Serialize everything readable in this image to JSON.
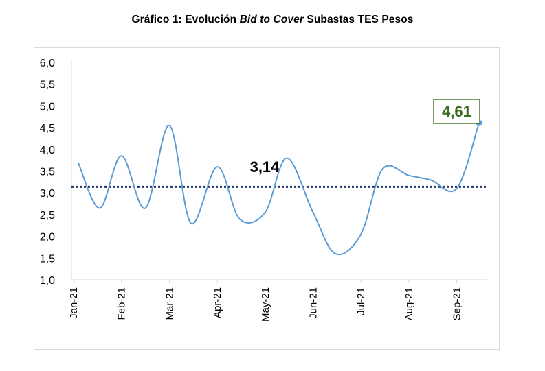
{
  "title_parts": {
    "prefix": "Gráfico 1: Evolución ",
    "emphasis": "Bid to Cover",
    "suffix": " Subastas TES Pesos"
  },
  "chart_data": {
    "type": "line",
    "title": "Gráfico 1: Evolución Bid to Cover Subastas TES Pesos",
    "xlabel": "",
    "ylabel": "",
    "ylim": [
      1.0,
      6.0
    ],
    "ytick_step": 0.5,
    "yticks": [
      "1,0",
      "1,5",
      "2,0",
      "2,5",
      "3,0",
      "3,5",
      "4,0",
      "4,5",
      "5,0",
      "5,5",
      "6,0"
    ],
    "x_ticks": [
      "Jan-21",
      "Feb-21",
      "Mar-21",
      "Apr-21",
      "May-21",
      "Jun-21",
      "Jul-21",
      "Aug-21",
      "Sep-21"
    ],
    "grid": false,
    "series": [
      {
        "color": "#5b9bd5",
        "x": [
          "2021-01-04",
          "2021-01-18",
          "2021-02-01",
          "2021-02-15",
          "2021-03-01",
          "2021-03-15",
          "2021-04-01",
          "2021-04-15",
          "2021-05-01",
          "2021-05-15",
          "2021-06-01",
          "2021-06-15",
          "2021-07-01",
          "2021-07-15",
          "2021-08-01",
          "2021-08-15",
          "2021-09-01",
          "2021-09-15"
        ],
        "values": [
          3.7,
          2.65,
          3.85,
          2.65,
          4.55,
          2.3,
          3.6,
          2.4,
          2.55,
          3.8,
          2.55,
          1.6,
          2.05,
          3.55,
          3.4,
          3.3,
          3.1,
          4.61
        ]
      }
    ],
    "reference_line": {
      "value": 3.14,
      "label": "3,14",
      "color": "#1f3864"
    },
    "last_value_label": {
      "label": "4,61",
      "border_color": "#4a7a2c",
      "text_color": "#3a6b1f"
    }
  }
}
